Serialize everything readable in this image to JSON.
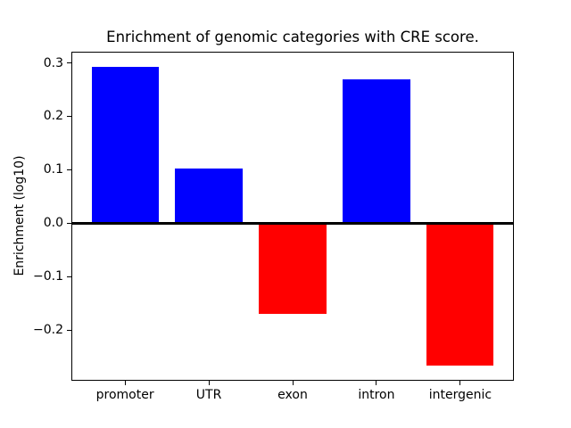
{
  "chart_data": {
    "type": "bar",
    "title": "Enrichment of genomic categories with CRE score.",
    "xlabel": "",
    "ylabel": "Enrichment (log10)",
    "categories": [
      "promoter",
      "UTR",
      "exon",
      "intron",
      "intergenic"
    ],
    "values": [
      0.293,
      0.102,
      -0.17,
      0.27,
      -0.267
    ],
    "bar_colors": [
      "#0000ff",
      "#0000ff",
      "#ff0000",
      "#0000ff",
      "#ff0000"
    ],
    "positive_color": "#0000ff",
    "negative_color": "#ff0000",
    "ylim": [
      -0.295,
      0.321
    ],
    "xlim": [
      -0.64,
      4.64
    ],
    "yticks": [
      0.3,
      0.2,
      0.1,
      0.0,
      -0.1,
      -0.2
    ],
    "ytick_labels": [
      "0.3",
      "0.2",
      "0.1",
      "0.0",
      "−0.1",
      "−0.2"
    ],
    "bar_width_fraction": 0.8,
    "zero_line": true,
    "grid": false,
    "legend": null,
    "background": "#ffffff",
    "axis_color": "#000000"
  }
}
